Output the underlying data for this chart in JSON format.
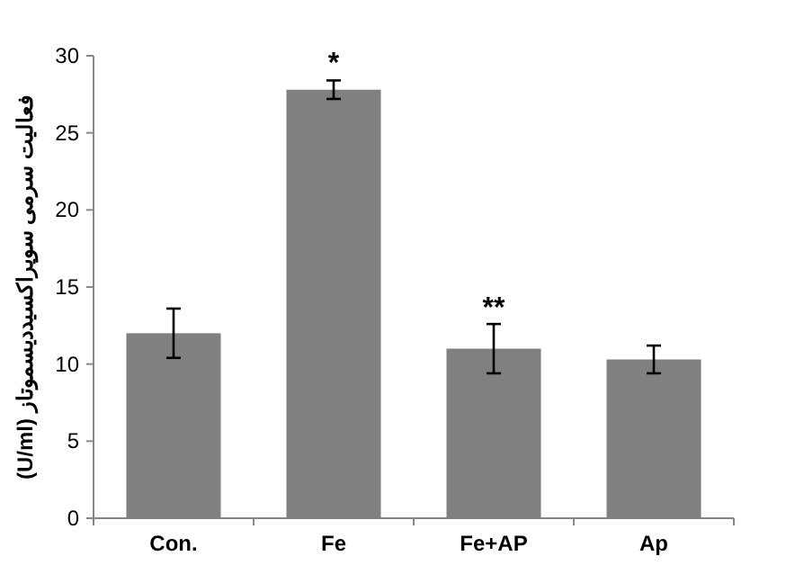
{
  "chart_data": {
    "type": "bar",
    "ylabel": "فعالیت سرمی سوپراکسیددیسموتاز (U/ml)",
    "categories": [
      "Con.",
      "Fe",
      "Fe+AP",
      "Ap"
    ],
    "values": [
      12.0,
      27.8,
      11.0,
      10.3
    ],
    "errors": [
      1.6,
      0.6,
      1.6,
      0.9
    ],
    "color": "#808080",
    "ylim": [
      0,
      30
    ],
    "yticks": [
      0,
      5,
      10,
      15,
      20,
      25,
      30
    ],
    "annotations": [
      {
        "text": "*",
        "x": "Fe",
        "y": 28.5
      },
      {
        "text": "**",
        "x": "Fe+AP",
        "y": 12.6
      }
    ]
  }
}
